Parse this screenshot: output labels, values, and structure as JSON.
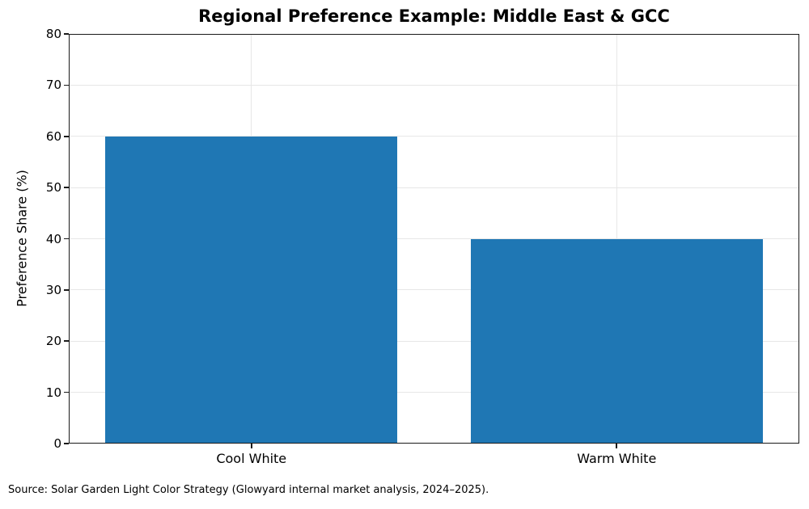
{
  "figure": {
    "source_note": "Source: Solar Garden Light Color Strategy (Glowyard internal market analysis, 2024–2025)."
  },
  "chart_data": {
    "type": "bar",
    "title": "Regional Preference Example: Middle East & GCC",
    "categories": [
      "Cool White",
      "Warm White"
    ],
    "values": [
      60,
      40
    ],
    "xlabel": "",
    "ylabel": "Preference Share (%)",
    "ylim": [
      0,
      80
    ],
    "yticks": [
      0,
      10,
      20,
      30,
      40,
      50,
      60,
      70,
      80
    ],
    "grid": true,
    "legend_position": "none",
    "bar_width_fraction": 0.8,
    "colors": {
      "bar": "#1f77b4",
      "grid": "#e7e7e7",
      "spine": "#1a1a1a",
      "text": "#000000",
      "background": "#ffffff"
    }
  }
}
